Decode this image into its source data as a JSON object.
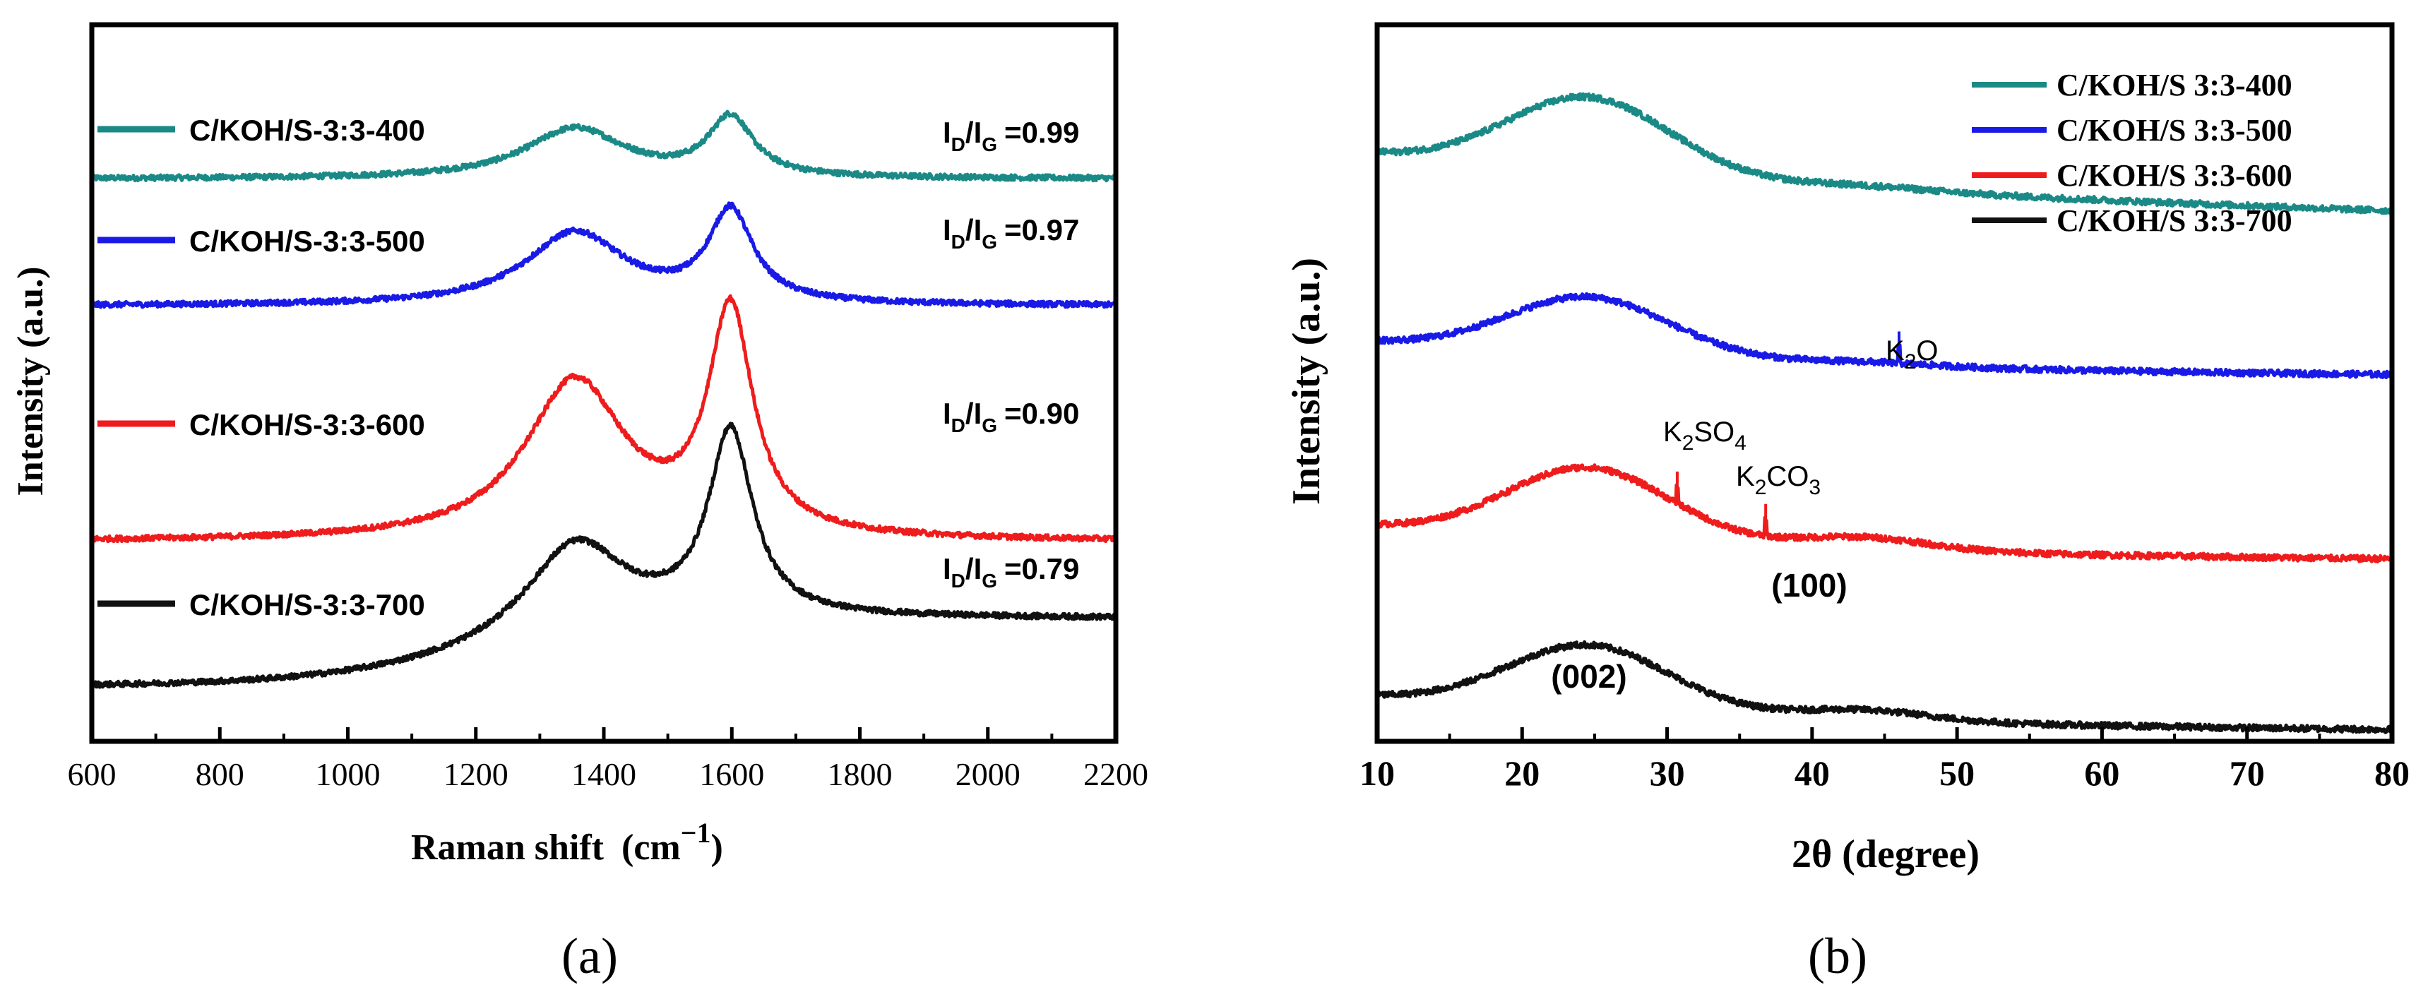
{
  "chart_data": [
    {
      "panel_label": "(a)",
      "type": "line",
      "xlabel": "Raman shift",
      "xlabel_unit": "(cm",
      "xlabel_unit_sup": "−1",
      "xlabel_unit_close": ")",
      "ylabel": "Intensity (a.u.)",
      "xlim": [
        600,
        2200
      ],
      "xticks": [
        600,
        800,
        1000,
        1200,
        1400,
        1600,
        1800,
        2000,
        2200
      ],
      "yticks": [],
      "series": [
        {
          "name": "C/KOH/S-3:3-400",
          "color": "#1b8a86",
          "ratio_value": "=0.99",
          "baseline": 5.6,
          "tilt": 0.0,
          "d_band": 0.55,
          "g_band": 0.65
        },
        {
          "name": "C/KOH/S-3:3-500",
          "color": "#1a1ae6",
          "ratio_value": "=0.97",
          "baseline": 4.2,
          "tilt": 0.0,
          "d_band": 0.8,
          "g_band": 1.0
        },
        {
          "name": "C/KOH/S-3:3-600",
          "color": "#ee1c1c",
          "ratio_value": "=0.90",
          "baseline": 1.6,
          "tilt": 0.0,
          "d_band": 1.75,
          "g_band": 2.45
        },
        {
          "name": "C/KOH/S-3:3-700",
          "color": "#111111",
          "ratio_value": "=0.79",
          "baseline": 0.0,
          "tilt": 0.75,
          "d_band": 1.05,
          "g_band": 2.05
        }
      ],
      "ratio_label_main": "I",
      "ratio_label_sub_d": "D",
      "ratio_label_sub_g": "G"
    },
    {
      "panel_label": "(b)",
      "type": "line",
      "xlabel": "2θ (degree)",
      "ylabel": "Intensity (a.u.)",
      "xlim": [
        10,
        80
      ],
      "xticks": [
        10,
        20,
        30,
        40,
        50,
        60,
        70,
        80
      ],
      "yticks": [],
      "legend_position": "top-right",
      "series": [
        {
          "name": "C/KOH/S 3:3-400",
          "color": "#1b8a86",
          "offset": 7.6,
          "peak002": 1.1,
          "peak100": 0.05
        },
        {
          "name": "C/KOH/S 3:3-500",
          "color": "#1a1ae6",
          "offset": 5.2,
          "peak002": 0.85,
          "peak100": 0.05
        },
        {
          "name": "C/KOH/S 3:3-600",
          "color": "#ee1c1c",
          "offset": 2.5,
          "peak002": 1.05,
          "peak100": 0.18
        },
        {
          "name": "C/KOH/S 3:3-700",
          "color": "#111111",
          "offset": 0.0,
          "peak002": 0.95,
          "peak100": 0.15
        }
      ],
      "annotations": [
        {
          "id": "k2o",
          "main": "K",
          "sub": "2",
          "rest": "O",
          "x": 46.0,
          "series": 1
        },
        {
          "id": "k2so4",
          "main": "K",
          "sub": "2",
          "rest": "SO",
          "sub2": "4",
          "x": 30.7,
          "series": 2
        },
        {
          "id": "k2co3",
          "main": "K",
          "sub": "2",
          "rest": "CO",
          "sub2": "3",
          "x": 36.8,
          "series": 2
        }
      ],
      "peak_labels": [
        {
          "id": "p100",
          "text": "(100)"
        },
        {
          "id": "p002",
          "text": "(002)"
        }
      ]
    }
  ]
}
